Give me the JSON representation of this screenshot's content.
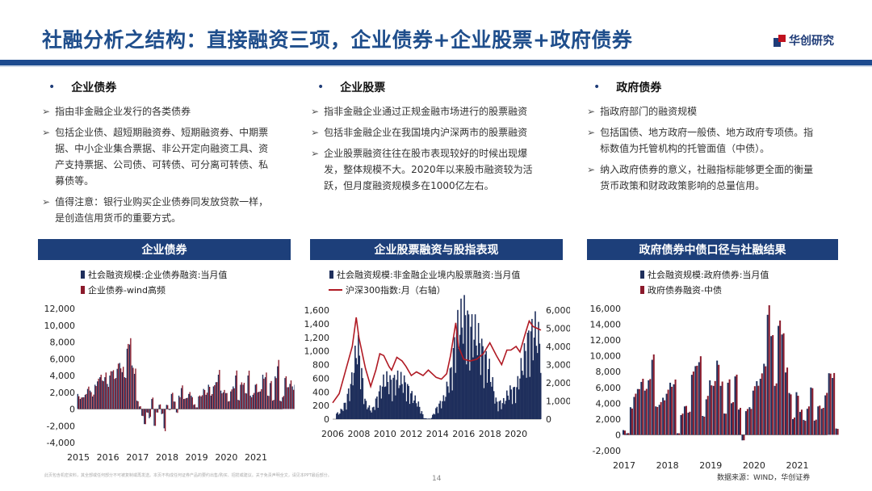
{
  "header": {
    "title": "社融分析之结构：直接融资三项，企业债券+企业股票+政府债券",
    "logo_text": "华创研究",
    "brand_color": "#1d4b8f",
    "accent_color": "#c0121f"
  },
  "sections": [
    {
      "heading": "企业债券",
      "bullets": [
        "指由非金融企业发行的各类债券",
        "包括企业债、超短期融资券、短期融资券、中期票据、中小企业集合票据、非公开定向融资工具、资产支持票据、公司债、可转债、可分离可转债、私募债等。",
        "值得注意：银行业购买企业债券同发放贷款一样，是创造信用货币的重要方式。"
      ]
    },
    {
      "heading": "企业股票",
      "bullets": [
        "指非金融企业通过正规金融市场进行的股票融资",
        "包括非金融企业在我国境内沪深两市的股票融资",
        "企业股票融资往往在股市表现较好的时候出现爆发，整体规模不大。2020年以来股市融资较为活跃，但月度融资规模多在1000亿左右。"
      ]
    },
    {
      "heading": "政府债券",
      "bullets": [
        "指政府部门的融资规模",
        "包括国债、地方政府一般债、地方政府专项债。指标数值为托管机构的托管面值（中债）。",
        "纳入政府债券的意义，社融指标能够更全面的衡量货币政策和财政政策影响的总量信用。"
      ]
    }
  ],
  "chart_data": [
    {
      "type": "bar",
      "panel_title": "企业债券",
      "series": [
        {
          "name": "社会融资规模:企业债券融资:当月值",
          "color": "#1f2f5c"
        },
        {
          "name": "企业债券-wind高频",
          "color": "#8b1a2b"
        }
      ],
      "x_range": [
        2015,
        2021.9
      ],
      "x_ticks": [
        "2015",
        "2016",
        "2017",
        "2018",
        "2019",
        "2020",
        "2021"
      ],
      "ylim": [
        -4000,
        12000
      ],
      "y_ticks": [
        "-4,000",
        "-2,000",
        "0",
        "2,000",
        "4,000",
        "6,000",
        "8,000",
        "10,000",
        "12,000"
      ],
      "values_start": 2015.0,
      "values_step_months": 1,
      "values": [
        1800,
        1200,
        1400,
        1700,
        2400,
        2200,
        1500,
        2900,
        3300,
        3800,
        3400,
        3800,
        3000,
        4000,
        4500,
        3600,
        4800,
        5500,
        4400,
        3800,
        7200,
        7700,
        5200,
        4200,
        1000,
        300,
        -800,
        -1800,
        -400,
        -1100,
        1200,
        -2000,
        -400,
        500,
        -600,
        -2300,
        500,
        -100,
        1800,
        900,
        -400,
        1600,
        2500,
        1200,
        1300,
        1800,
        1600,
        500,
        200,
        1500,
        1500,
        2400,
        1700,
        2900,
        1600,
        2700,
        3200,
        4100,
        2200,
        2000,
        1900,
        900,
        2100,
        2700,
        4000,
        1100,
        2900,
        2900,
        1900,
        4000,
        1600,
        1700,
        2900,
        2000,
        2100,
        4100,
        3800,
        1600,
        3100,
        1000,
        3900,
        5100,
        1000,
        1400,
        3700,
        2600,
        3000,
        2700,
        2900,
        9700,
        4500,
        3400,
        3900,
        2300,
        3500,
        3000,
        3600,
        4000,
        2200,
        2800,
        600,
        2200,
        3200,
        3800,
        4100,
        700,
        3800,
        -1200
      ]
    },
    {
      "type": "bar+line",
      "panel_title": "企业股票融资与股指表现",
      "series": [
        {
          "name": "社会融资规模:非金融企业境内股票融资:当月值",
          "axis": "left",
          "color": "#1f2f5c"
        },
        {
          "name": "沪深300指数:月（右轴）",
          "axis": "right",
          "color": "#b01a24"
        }
      ],
      "x_range": [
        2006,
        2021.9
      ],
      "x_ticks": [
        "2006",
        "2008",
        "2010",
        "2012",
        "2014",
        "2016",
        "2018",
        "2020"
      ],
      "ylim": [
        0,
        1600
      ],
      "y_ticks": [
        "0",
        "200",
        "400",
        "600",
        "800",
        "1,000",
        "1,200",
        "1,400",
        "1,600"
      ],
      "y2lim": [
        0,
        6000
      ],
      "y2_ticks": [
        "0",
        "1,000",
        "2,000",
        "3,000",
        "4,000",
        "5,000",
        "6,000"
      ],
      "bar_anchor_years": [
        2006.5,
        2007.0,
        2007.5,
        2007.9,
        2008.5,
        2009.0,
        2009.5,
        2010.0,
        2010.5,
        2011.0,
        2011.5,
        2012.0,
        2012.5,
        2013.0,
        2013.5,
        2014.0,
        2014.5,
        2015.0,
        2015.5,
        2016.0,
        2016.5,
        2017.0,
        2017.5,
        2018.0,
        2018.5,
        2019.0,
        2019.5,
        2020.0,
        2020.5,
        2021.0,
        2021.5,
        2021.9
      ],
      "bar_anchor_values": [
        70,
        200,
        500,
        950,
        200,
        100,
        300,
        500,
        450,
        500,
        450,
        300,
        200,
        10,
        5,
        150,
        250,
        550,
        1100,
        1300,
        1100,
        1050,
        800,
        600,
        200,
        200,
        350,
        350,
        700,
        1000,
        1100,
        900
      ],
      "line_years": [
        2006.0,
        2006.5,
        2007.0,
        2007.5,
        2007.8,
        2008.0,
        2008.5,
        2008.9,
        2009.3,
        2009.6,
        2009.9,
        2010.3,
        2010.5,
        2010.9,
        2011.3,
        2011.6,
        2012.0,
        2012.4,
        2012.9,
        2013.3,
        2013.9,
        2014.3,
        2014.7,
        2015.0,
        2015.4,
        2015.6,
        2016.0,
        2016.5,
        2017.0,
        2017.5,
        2018.0,
        2018.5,
        2018.9,
        2019.3,
        2019.6,
        2020.0,
        2020.3,
        2020.7,
        2021.0,
        2021.3,
        2021.6,
        2021.9
      ],
      "line_values": [
        900,
        1400,
        2700,
        4000,
        5600,
        4500,
        2800,
        1800,
        2700,
        3600,
        3500,
        2900,
        2700,
        3400,
        3200,
        2900,
        2400,
        2600,
        2400,
        2700,
        2300,
        2200,
        2500,
        3500,
        5300,
        4000,
        3300,
        3200,
        3300,
        3600,
        4200,
        3500,
        3000,
        3800,
        3800,
        4000,
        3700,
        4700,
        5400,
        5100,
        5000,
        4900
      ]
    },
    {
      "type": "bar",
      "panel_title": "政府债券中债口径与社融结果",
      "series": [
        {
          "name": "社会融资规模:政府债券:当月值",
          "color": "#1f2f5c"
        },
        {
          "name": "政府债券融资-中债",
          "color": "#8b1a2b"
        }
      ],
      "x_range": [
        2017,
        2021.7
      ],
      "x_ticks": [
        "2017",
        "2018",
        "2019",
        "2020",
        "2021"
      ],
      "ylim": [
        -2000,
        16000
      ],
      "y_ticks": [
        "-2,000",
        "0",
        "2,000",
        "4,000",
        "6,000",
        "8,000",
        "10,000",
        "12,000",
        "14,000",
        "16,000"
      ],
      "values_start": 2017.0,
      "values_step_months": 1,
      "values": [
        600,
        200,
        3500,
        4800,
        5800,
        6700,
        5600,
        6900,
        9500,
        3600,
        3800,
        4700,
        5200,
        6600,
        6400,
        200,
        2500,
        3600,
        2800,
        7600,
        8700,
        9200,
        2400,
        4500,
        6900,
        6200,
        9400,
        6200,
        2700,
        6600,
        4000,
        7400,
        3200,
        -700,
        3000,
        3500,
        5600,
        6800,
        7100,
        9000,
        15200,
        12500,
        6200,
        13800,
        12700,
        7900,
        5300,
        2000,
        5400,
        2900,
        1900,
        3300,
        6000,
        1800,
        3600,
        3300,
        5000,
        7800,
        7200,
        800
      ]
    }
  ],
  "footer": {
    "disclaimer": "此页包含机密资料，其全部或任何部分不可被复制或再发送。本页不构成任何证券产品的要约出售/购买、招揽或建议。关于免责声明全文，请见本PPT最后部分。",
    "page": "14",
    "source": "数据来源：WIND，华创证券"
  }
}
